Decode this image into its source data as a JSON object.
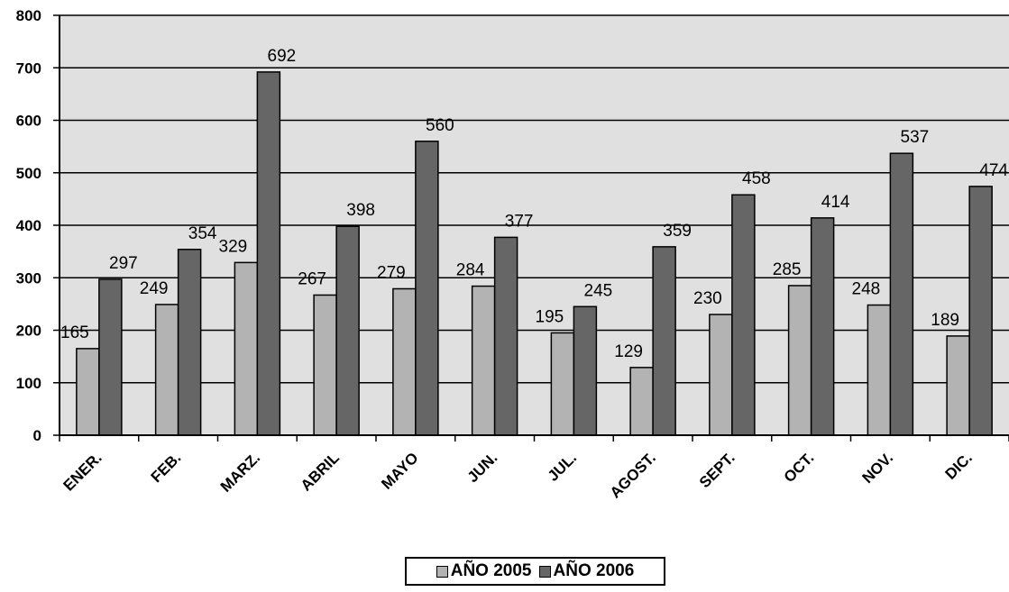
{
  "chart_data": {
    "type": "bar",
    "title": "",
    "xlabel": "",
    "ylabel": "",
    "categories": [
      "ENER.",
      "FEB.",
      "MARZ.",
      "ABRIL",
      "MAYO",
      "JUN.",
      "JUL.",
      "AGOST.",
      "SEPT.",
      "OCT.",
      "NOV.",
      "DIC."
    ],
    "series": [
      {
        "name": "AÑO 2005",
        "color": "#b3b3b3",
        "values": [
          165,
          249,
          329,
          267,
          279,
          284,
          195,
          129,
          230,
          285,
          248,
          189
        ]
      },
      {
        "name": "AÑO 2006",
        "color": "#666666",
        "values": [
          297,
          354,
          692,
          398,
          560,
          377,
          245,
          359,
          458,
          414,
          537,
          474
        ]
      }
    ],
    "ylim": [
      0,
      800
    ],
    "yticks": [
      0,
      100,
      200,
      300,
      400,
      500,
      600,
      700,
      800
    ],
    "grid": true,
    "plot_background": "#e0e0e0",
    "legend_position": "bottom-center",
    "data_labels": true
  }
}
